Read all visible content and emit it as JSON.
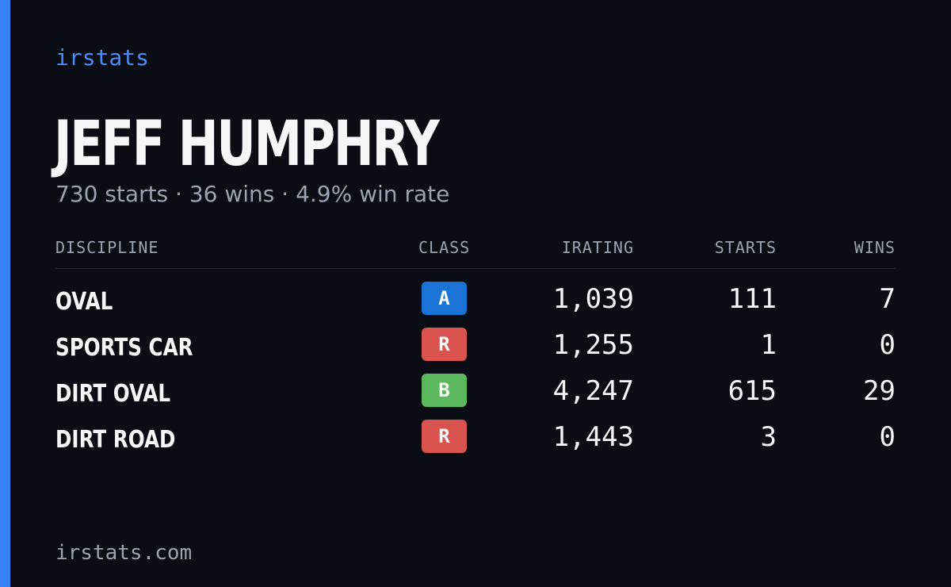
{
  "brand": "irstats",
  "driver": {
    "name": "JEFF HUMPHRY"
  },
  "summary": "730 starts · 36 wins · 4.9% win rate",
  "table": {
    "headers": {
      "discipline": "DISCIPLINE",
      "class": "CLASS",
      "irating": "IRATING",
      "starts": "STARTS",
      "wins": "WINS"
    },
    "rows": [
      {
        "discipline": "OVAL",
        "class": "A",
        "class_color": "#1a73d6",
        "irating": "1,039",
        "starts": "111",
        "wins": "7"
      },
      {
        "discipline": "SPORTS CAR",
        "class": "R",
        "class_color": "#d9534f",
        "irating": "1,255",
        "starts": "1",
        "wins": "0"
      },
      {
        "discipline": "DIRT OVAL",
        "class": "B",
        "class_color": "#5cb85c",
        "irating": "4,247",
        "starts": "615",
        "wins": "29"
      },
      {
        "discipline": "DIRT ROAD",
        "class": "R",
        "class_color": "#d9534f",
        "irating": "1,443",
        "starts": "3",
        "wins": "0"
      }
    ]
  },
  "footer": "irstats.com",
  "colors": {
    "accent": "#3b82f6",
    "background": "#0a0d14"
  }
}
